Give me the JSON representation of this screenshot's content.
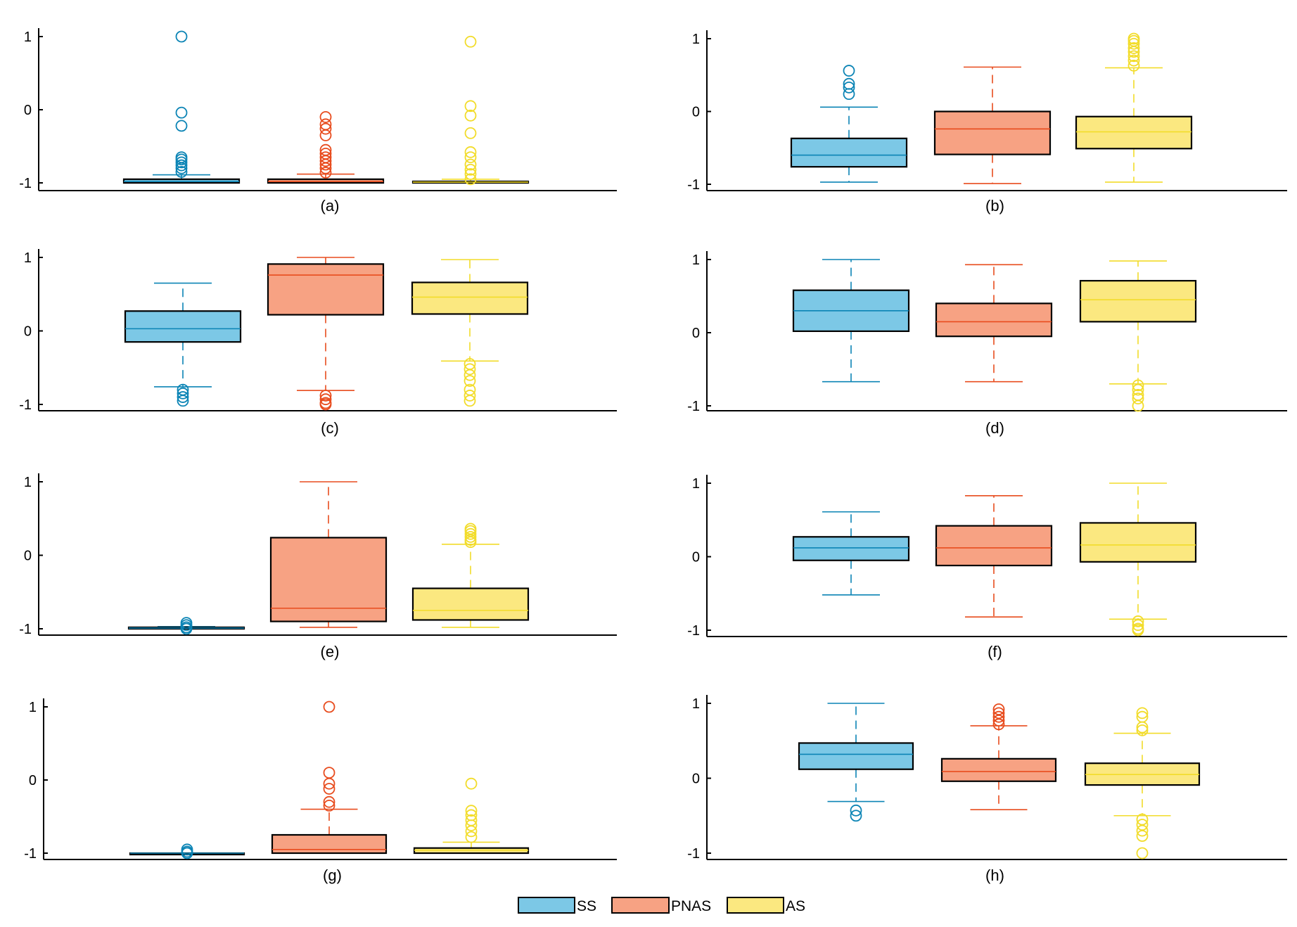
{
  "legend": [
    {
      "name": "SS",
      "color": "#0b84b5",
      "fill": "#7cc8e6"
    },
    {
      "name": "PNAS",
      "color": "#e84c1e",
      "fill": "#f7a283"
    },
    {
      "name": "AS",
      "color": "#f2dc2a",
      "fill": "#fbe880"
    }
  ],
  "chart_data": [
    {
      "type": "box",
      "caption": "(a)",
      "yticks": [
        "1",
        "0",
        "-1"
      ],
      "ylim": [
        -1.05,
        1.05
      ],
      "series": [
        {
          "name": "SS",
          "lower_whisker": -1.0,
          "q1": -1.0,
          "median": -0.98,
          "q3": -0.95,
          "upper_whisker": -0.89,
          "outliers": [
            1.0,
            -0.04,
            -0.22,
            -0.65,
            -0.68,
            -0.72,
            -0.76,
            -0.8,
            -0.85
          ]
        },
        {
          "name": "PNAS",
          "lower_whisker": -1.0,
          "q1": -1.0,
          "median": -0.98,
          "q3": -0.95,
          "upper_whisker": -0.88,
          "outliers": [
            -0.1,
            -0.2,
            -0.26,
            -0.35,
            -0.55,
            -0.6,
            -0.65,
            -0.7,
            -0.75,
            -0.8,
            -0.86
          ]
        },
        {
          "name": "AS",
          "lower_whisker": -1.0,
          "q1": -1.0,
          "median": -0.99,
          "q3": -0.98,
          "upper_whisker": -0.95,
          "outliers": [
            0.93,
            0.05,
            -0.08,
            -0.32,
            -0.58,
            -0.65,
            -0.75,
            -0.82,
            -0.88,
            -0.95
          ]
        }
      ]
    },
    {
      "type": "box",
      "caption": "(b)",
      "yticks": [
        "1",
        "0",
        "-1"
      ],
      "ylim": [
        -1.05,
        1.05
      ],
      "series": [
        {
          "name": "SS",
          "lower_whisker": -0.97,
          "q1": -0.76,
          "median": -0.6,
          "q3": -0.37,
          "upper_whisker": 0.06,
          "outliers": [
            0.56,
            0.38,
            0.33,
            0.24
          ]
        },
        {
          "name": "PNAS",
          "lower_whisker": -0.99,
          "q1": -0.59,
          "median": -0.24,
          "q3": 0.0,
          "upper_whisker": 0.61,
          "outliers": []
        },
        {
          "name": "AS",
          "lower_whisker": -0.97,
          "q1": -0.51,
          "median": -0.28,
          "q3": -0.07,
          "upper_whisker": 0.6,
          "outliers": [
            1.0,
            0.97,
            0.93,
            0.87,
            0.82,
            0.76,
            0.7,
            0.63
          ]
        }
      ]
    },
    {
      "type": "box",
      "caption": "(c)",
      "yticks": [
        "1",
        "0",
        "-1"
      ],
      "ylim": [
        -1.05,
        1.05
      ],
      "series": [
        {
          "name": "SS",
          "lower_whisker": -0.76,
          "q1": -0.15,
          "median": 0.03,
          "q3": 0.27,
          "upper_whisker": 0.65,
          "outliers": [
            -0.8,
            -0.85,
            -0.9,
            -0.95
          ]
        },
        {
          "name": "PNAS",
          "lower_whisker": -0.81,
          "q1": 0.22,
          "median": 0.76,
          "q3": 0.91,
          "upper_whisker": 1.0,
          "outliers": [
            -0.88,
            -0.93,
            -0.98,
            -1.0
          ]
        },
        {
          "name": "AS",
          "lower_whisker": -0.41,
          "q1": 0.23,
          "median": 0.46,
          "q3": 0.66,
          "upper_whisker": 0.97,
          "outliers": [
            -0.45,
            -0.52,
            -0.6,
            -0.68,
            -0.8,
            -0.88,
            -0.95
          ]
        }
      ]
    },
    {
      "type": "box",
      "caption": "(d)",
      "yticks": [
        "1",
        "0",
        "-1"
      ],
      "ylim": [
        -1.05,
        1.05
      ],
      "series": [
        {
          "name": "SS",
          "lower_whisker": -0.67,
          "q1": 0.02,
          "median": 0.3,
          "q3": 0.58,
          "upper_whisker": 1.0,
          "outliers": []
        },
        {
          "name": "PNAS",
          "lower_whisker": -0.67,
          "q1": -0.05,
          "median": 0.15,
          "q3": 0.4,
          "upper_whisker": 0.93,
          "outliers": []
        },
        {
          "name": "AS",
          "lower_whisker": -0.7,
          "q1": 0.15,
          "median": 0.45,
          "q3": 0.71,
          "upper_whisker": 0.98,
          "outliers": [
            -0.72,
            -0.78,
            -0.85,
            -0.9,
            -1.0
          ]
        }
      ]
    },
    {
      "type": "box",
      "caption": "(e)",
      "yticks": [
        "1",
        "0",
        "-1"
      ],
      "ylim": [
        -1.05,
        1.05
      ],
      "series": [
        {
          "name": "SS",
          "lower_whisker": -1.0,
          "q1": -1.0,
          "median": -0.99,
          "q3": -0.98,
          "upper_whisker": -0.97,
          "outliers": [
            -0.92,
            -0.95,
            -0.98,
            -1.0
          ]
        },
        {
          "name": "PNAS",
          "lower_whisker": -0.98,
          "q1": -0.9,
          "median": -0.72,
          "q3": 0.24,
          "upper_whisker": 1.0,
          "outliers": []
        },
        {
          "name": "AS",
          "lower_whisker": -0.98,
          "q1": -0.88,
          "median": -0.75,
          "q3": -0.45,
          "upper_whisker": 0.15,
          "outliers": [
            0.36,
            0.33,
            0.29,
            0.25,
            0.21,
            0.18
          ]
        }
      ]
    },
    {
      "type": "box",
      "caption": "(f)",
      "yticks": [
        "1",
        "0",
        "-1"
      ],
      "ylim": [
        -1.05,
        1.05
      ],
      "series": [
        {
          "name": "SS",
          "lower_whisker": -0.52,
          "q1": -0.05,
          "median": 0.12,
          "q3": 0.27,
          "upper_whisker": 0.61,
          "outliers": []
        },
        {
          "name": "PNAS",
          "lower_whisker": -0.82,
          "q1": -0.12,
          "median": 0.12,
          "q3": 0.42,
          "upper_whisker": 0.83,
          "outliers": []
        },
        {
          "name": "AS",
          "lower_whisker": -0.85,
          "q1": -0.07,
          "median": 0.16,
          "q3": 0.46,
          "upper_whisker": 1.0,
          "outliers": [
            -0.88,
            -0.93,
            -0.98,
            -1.0
          ]
        }
      ]
    },
    {
      "type": "box",
      "caption": "(g)",
      "yticks": [
        "1",
        "0",
        "-1"
      ],
      "ylim": [
        -1.05,
        1.05
      ],
      "series": [
        {
          "name": "SS",
          "lower_whisker": -1.0,
          "q1": -1.0,
          "median": -1.0,
          "q3": -1.0,
          "upper_whisker": -1.0,
          "outliers": [
            -0.95,
            -0.98,
            -1.0
          ]
        },
        {
          "name": "PNAS",
          "lower_whisker": -1.0,
          "q1": -1.0,
          "median": -0.95,
          "q3": -0.75,
          "upper_whisker": -0.4,
          "outliers": [
            1.0,
            0.1,
            -0.05,
            -0.12,
            -0.3,
            -0.35
          ]
        },
        {
          "name": "AS",
          "lower_whisker": -1.0,
          "q1": -1.0,
          "median": -0.96,
          "q3": -0.93,
          "upper_whisker": -0.85,
          "outliers": [
            -0.05,
            -0.42,
            -0.48,
            -0.55,
            -0.62,
            -0.7,
            -0.78
          ]
        }
      ]
    },
    {
      "type": "box",
      "caption": "(h)",
      "yticks": [
        "1",
        "0",
        "-1"
      ],
      "ylim": [
        -1.05,
        1.05
      ],
      "series": [
        {
          "name": "SS",
          "lower_whisker": -0.31,
          "q1": 0.12,
          "median": 0.32,
          "q3": 0.47,
          "upper_whisker": 1.0,
          "outliers": [
            -0.43,
            -0.5
          ]
        },
        {
          "name": "PNAS",
          "lower_whisker": -0.42,
          "q1": -0.04,
          "median": 0.09,
          "q3": 0.26,
          "upper_whisker": 0.7,
          "outliers": [
            0.92,
            0.87,
            0.82,
            0.77,
            0.72
          ]
        },
        {
          "name": "AS",
          "lower_whisker": -0.5,
          "q1": -0.09,
          "median": 0.05,
          "q3": 0.2,
          "upper_whisker": 0.6,
          "outliers": [
            0.87,
            0.82,
            0.68,
            0.64,
            -0.55,
            -0.62,
            -0.7,
            -0.77,
            -1.0
          ]
        }
      ]
    }
  ]
}
